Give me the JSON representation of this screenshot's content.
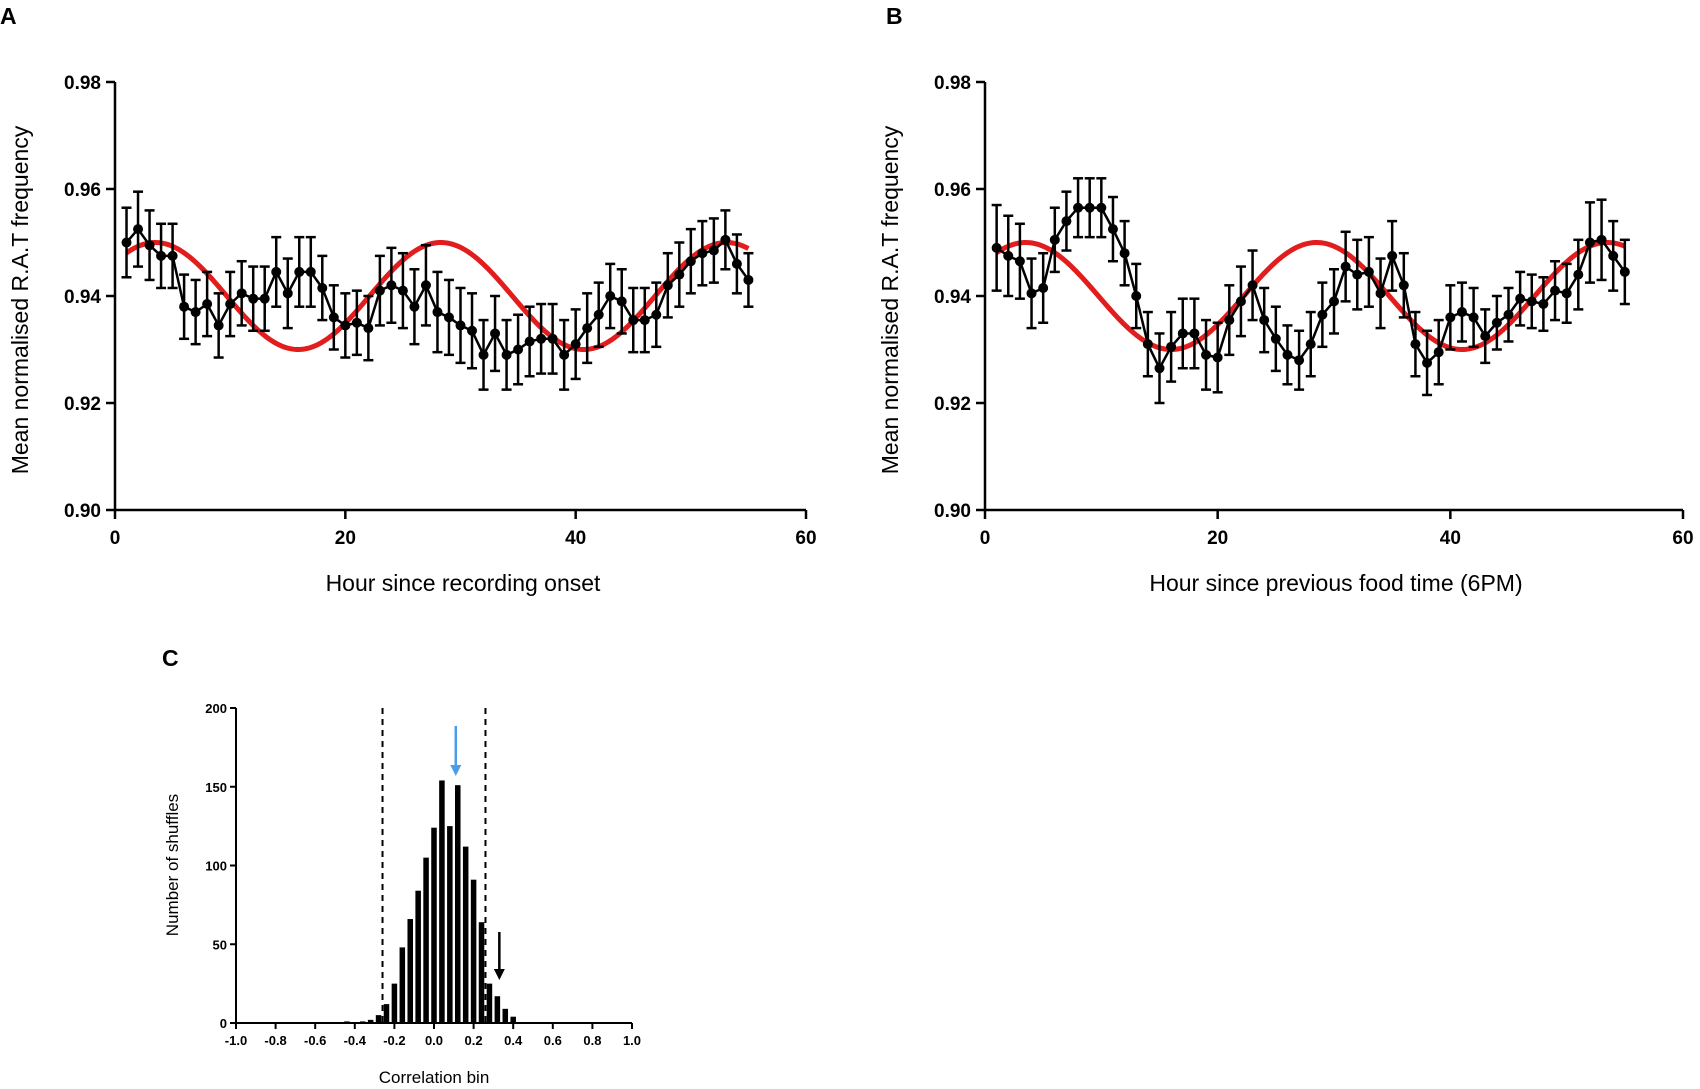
{
  "figure_panels": [
    "A",
    "B",
    "C"
  ],
  "colors": {
    "data": "#000000",
    "fit": "#e11d1d",
    "observed_arrow": "#4a9de8",
    "shuffle_arrow": "#000000"
  },
  "chart_data": [
    {
      "id": "A",
      "type": "line",
      "panel_label": "A",
      "xlabel": "Hour since recording onset",
      "ylabel": "Mean normalised R.A.T frequency",
      "xlim": [
        0,
        60
      ],
      "ylim": [
        0.9,
        0.98
      ],
      "xticks": [
        "0",
        "20",
        "40",
        "60"
      ],
      "yticks": [
        "0.90",
        "0.92",
        "0.94",
        "0.96",
        "0.98"
      ],
      "series": [
        {
          "name": "Mean R.A.T frequency",
          "x": [
            1,
            2,
            3,
            4,
            5,
            6,
            7,
            8,
            9,
            10,
            11,
            12,
            13,
            14,
            15,
            16,
            17,
            18,
            19,
            20,
            21,
            22,
            23,
            24,
            25,
            26,
            27,
            28,
            29,
            30,
            31,
            32,
            33,
            34,
            35,
            36,
            37,
            38,
            39,
            40,
            41,
            42,
            43,
            44,
            45,
            46,
            47,
            48,
            49,
            50,
            51,
            52,
            53,
            54,
            55
          ],
          "y": [
            0.95,
            0.9525,
            0.9495,
            0.9475,
            0.9475,
            0.938,
            0.937,
            0.9385,
            0.9345,
            0.9385,
            0.9405,
            0.9395,
            0.9395,
            0.9445,
            0.9405,
            0.9445,
            0.9445,
            0.9415,
            0.936,
            0.9345,
            0.935,
            0.934,
            0.941,
            0.942,
            0.941,
            0.938,
            0.942,
            0.937,
            0.936,
            0.9345,
            0.9335,
            0.929,
            0.933,
            0.929,
            0.93,
            0.9315,
            0.932,
            0.932,
            0.929,
            0.931,
            0.934,
            0.9365,
            0.94,
            0.939,
            0.9355,
            0.9355,
            0.9365,
            0.942,
            0.944,
            0.9465,
            0.948,
            0.9485,
            0.9505,
            0.946,
            0.943
          ],
          "error": [
            0.0065,
            0.007,
            0.0065,
            0.006,
            0.006,
            0.006,
            0.006,
            0.006,
            0.006,
            0.006,
            0.006,
            0.006,
            0.006,
            0.0065,
            0.0065,
            0.0065,
            0.0065,
            0.006,
            0.006,
            0.006,
            0.006,
            0.006,
            0.0065,
            0.007,
            0.007,
            0.007,
            0.0075,
            0.0075,
            0.007,
            0.007,
            0.007,
            0.0065,
            0.007,
            0.0065,
            0.0065,
            0.0065,
            0.0065,
            0.0065,
            0.0065,
            0.0065,
            0.0065,
            0.006,
            0.006,
            0.006,
            0.006,
            0.006,
            0.006,
            0.006,
            0.006,
            0.006,
            0.006,
            0.006,
            0.0055,
            0.0055,
            0.005
          ]
        },
        {
          "name": "Cosine fit",
          "fit": "cosine",
          "mean": 0.94,
          "amplitude": 0.01,
          "period_h": 24.8,
          "peak_h": 3.5
        }
      ]
    },
    {
      "id": "B",
      "type": "line",
      "panel_label": "B",
      "xlabel": "Hour since previous food time (6PM)",
      "ylabel": "Mean normalised R.A.T frequency",
      "xlim": [
        0,
        60
      ],
      "ylim": [
        0.9,
        0.98
      ],
      "xticks": [
        "0",
        "20",
        "40",
        "60"
      ],
      "yticks": [
        "0.90",
        "0.92",
        "0.94",
        "0.96",
        "0.98"
      ],
      "series": [
        {
          "name": "Mean R.A.T frequency",
          "x": [
            1,
            2,
            3,
            4,
            5,
            6,
            7,
            8,
            9,
            10,
            11,
            12,
            13,
            14,
            15,
            16,
            17,
            18,
            19,
            20,
            21,
            22,
            23,
            24,
            25,
            26,
            27,
            28,
            29,
            30,
            31,
            32,
            33,
            34,
            35,
            36,
            37,
            38,
            39,
            40,
            41,
            42,
            43,
            44,
            45,
            46,
            47,
            48,
            49,
            50,
            51,
            52,
            53,
            54,
            55
          ],
          "y": [
            0.949,
            0.9475,
            0.9465,
            0.9405,
            0.9415,
            0.9505,
            0.954,
            0.9565,
            0.9565,
            0.9565,
            0.9525,
            0.948,
            0.94,
            0.931,
            0.9265,
            0.9305,
            0.933,
            0.933,
            0.929,
            0.9285,
            0.9355,
            0.939,
            0.942,
            0.9355,
            0.932,
            0.929,
            0.928,
            0.931,
            0.9365,
            0.939,
            0.9455,
            0.944,
            0.9445,
            0.9405,
            0.9475,
            0.942,
            0.931,
            0.9275,
            0.9295,
            0.936,
            0.937,
            0.936,
            0.9325,
            0.935,
            0.9365,
            0.9395,
            0.939,
            0.9385,
            0.941,
            0.9405,
            0.944,
            0.95,
            0.9505,
            0.9475,
            0.9445
          ],
          "error": [
            0.008,
            0.0075,
            0.007,
            0.0065,
            0.0065,
            0.006,
            0.0055,
            0.0055,
            0.0055,
            0.0055,
            0.006,
            0.006,
            0.006,
            0.006,
            0.0065,
            0.0065,
            0.0065,
            0.0065,
            0.0065,
            0.0065,
            0.0065,
            0.0065,
            0.0065,
            0.006,
            0.006,
            0.0055,
            0.0055,
            0.006,
            0.006,
            0.006,
            0.0065,
            0.0065,
            0.0065,
            0.0065,
            0.0065,
            0.006,
            0.006,
            0.006,
            0.006,
            0.006,
            0.0055,
            0.0055,
            0.005,
            0.005,
            0.005,
            0.005,
            0.005,
            0.005,
            0.0055,
            0.0055,
            0.0065,
            0.0075,
            0.0075,
            0.0065,
            0.006
          ]
        },
        {
          "name": "Cosine fit",
          "fit": "cosine",
          "mean": 0.94,
          "amplitude": 0.01,
          "period_h": 25.0,
          "peak_h": 3.5
        }
      ]
    },
    {
      "id": "C",
      "type": "bar",
      "panel_label": "C",
      "xlabel": "Correlation bin",
      "ylabel": "Number of shuffles",
      "xlim": [
        -1.0,
        1.0
      ],
      "ylim": [
        0,
        200
      ],
      "xticks": [
        "-1.0",
        "-0.8",
        "-0.6",
        "-0.4",
        "-0.2",
        "0.0",
        "0.2",
        "0.4",
        "0.6",
        "0.8",
        "1.0"
      ],
      "yticks": [
        "0",
        "50",
        "100",
        "150",
        "200"
      ],
      "bin_width": 0.04,
      "bin_centers": [
        -0.44,
        -0.4,
        -0.36,
        -0.32,
        -0.28,
        -0.24,
        -0.2,
        -0.16,
        -0.12,
        -0.08,
        -0.04,
        0.0,
        0.04,
        0.08,
        0.12,
        0.16,
        0.2,
        0.24,
        0.28,
        0.32,
        0.36,
        0.4
      ],
      "values": [
        1,
        0,
        1,
        2,
        5,
        12,
        25,
        48,
        66,
        84,
        105,
        124,
        154,
        125,
        151,
        112,
        91,
        64,
        25,
        17,
        9,
        4
      ],
      "threshold_lines": [
        -0.26,
        0.26
      ],
      "arrows": [
        {
          "name": "observed correlation",
          "x": 0.11,
          "color": "#4a9de8"
        },
        {
          "name": "shuffle reference",
          "x": 0.33,
          "color": "#000000"
        }
      ]
    }
  ]
}
